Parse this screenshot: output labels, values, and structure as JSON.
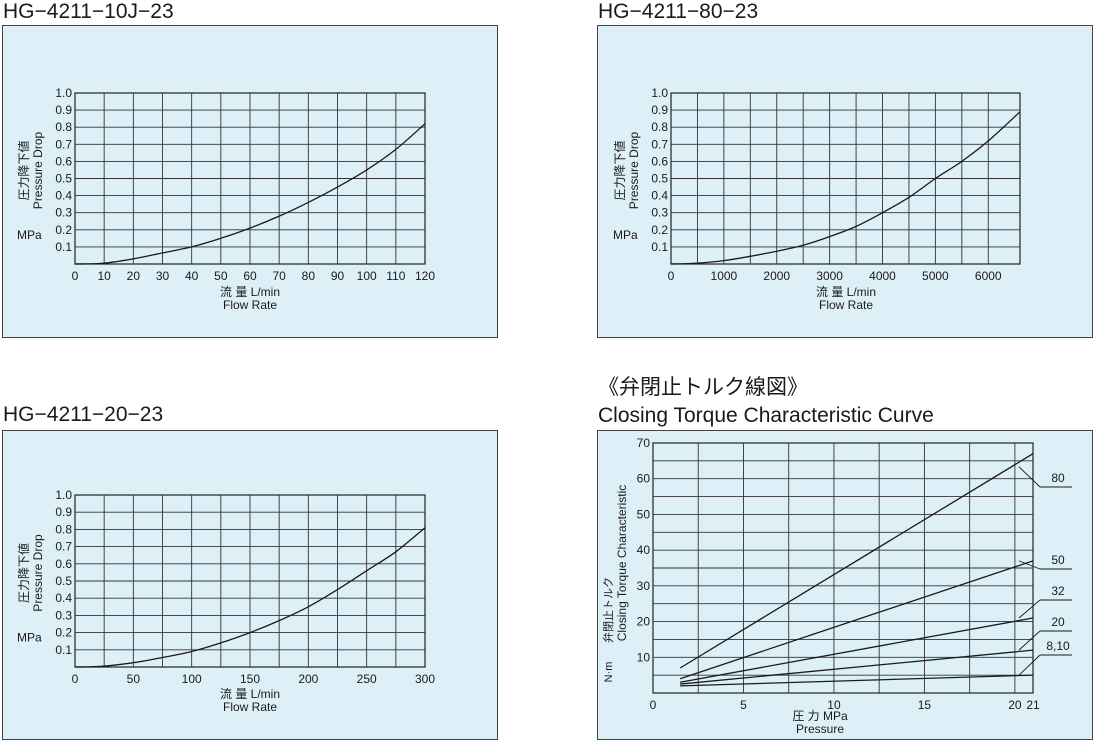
{
  "torque_heading": "《弁閉止トルク線図》",
  "chart_data": [
    {
      "id": "c1",
      "type": "line",
      "title": "HG−4211−10J−23",
      "xlabel_jp": "流 量 L/min",
      "xlabel_en": "Flow Rate",
      "ylabel_jp": "圧力降下値",
      "ylabel_en": "Pressure Drop",
      "yunit": "MPa",
      "xlim": [
        0,
        120
      ],
      "ylim": [
        0,
        1.0
      ],
      "x_ticks": [
        0,
        10,
        20,
        30,
        40,
        50,
        60,
        70,
        80,
        90,
        100,
        110,
        120
      ],
      "x_tick_labels": [
        "0",
        "10",
        "20",
        "30",
        "40",
        "50",
        "60",
        "70",
        "80",
        "90",
        "100",
        "110",
        "120"
      ],
      "y_ticks": [
        0.1,
        0.2,
        0.3,
        0.4,
        0.5,
        0.6,
        0.7,
        0.8,
        0.9,
        1.0
      ],
      "y_tick_labels": [
        "0.1",
        "0.2",
        "0.3",
        "0.4",
        "0.5",
        "0.6",
        "0.7",
        "0.8",
        "0.9",
        "1.0"
      ],
      "grid": true,
      "series": [
        {
          "x": [
            0,
            10,
            20,
            30,
            40,
            50,
            60,
            70,
            80,
            90,
            100,
            110,
            120
          ],
          "y": [
            0,
            0.005,
            0.03,
            0.065,
            0.1,
            0.15,
            0.21,
            0.28,
            0.36,
            0.45,
            0.55,
            0.67,
            0.82
          ]
        }
      ]
    },
    {
      "id": "c2",
      "type": "line",
      "title": "HG−4211−80−23",
      "xlabel_jp": "流 量 L/min",
      "xlabel_en": "Flow Rate",
      "ylabel_jp": "圧力降下値",
      "ylabel_en": "Pressure Drop",
      "yunit": "MPa",
      "xlim": [
        0,
        6600
      ],
      "ylim": [
        0,
        1.0
      ],
      "x_ticks": [
        0,
        1000,
        2000,
        3000,
        4000,
        5000,
        6000
      ],
      "x_tick_labels": [
        "0",
        "1000",
        "2000",
        "3000",
        "4000",
        "5000",
        "6000"
      ],
      "x_grid": [
        500,
        1000,
        1500,
        2000,
        2500,
        3000,
        3500,
        4000,
        4500,
        5000,
        5500,
        6000
      ],
      "y_ticks": [
        0.1,
        0.2,
        0.3,
        0.4,
        0.5,
        0.6,
        0.7,
        0.8,
        0.9,
        1.0
      ],
      "y_tick_labels": [
        "0.1",
        "0.2",
        "0.3",
        "0.4",
        "0.5",
        "0.6",
        "0.7",
        "0.8",
        "0.9",
        "1.0"
      ],
      "grid": true,
      "series": [
        {
          "x": [
            0,
            500,
            1000,
            1500,
            2000,
            2500,
            3000,
            3500,
            4000,
            4500,
            5000,
            5500,
            6000,
            6600
          ],
          "y": [
            0,
            0.005,
            0.02,
            0.045,
            0.075,
            0.11,
            0.16,
            0.22,
            0.3,
            0.39,
            0.5,
            0.6,
            0.72,
            0.89
          ]
        }
      ]
    },
    {
      "id": "c3",
      "type": "line",
      "title": "HG−4211−20−23",
      "xlabel_jp": "流 量 L/min",
      "xlabel_en": "Flow Rate",
      "ylabel_jp": "圧力降下値",
      "ylabel_en": "Pressure Drop",
      "yunit": "MPa",
      "xlim": [
        0,
        300
      ],
      "ylim": [
        0,
        1.0
      ],
      "x_ticks": [
        0,
        50,
        100,
        150,
        200,
        250,
        300
      ],
      "x_tick_labels": [
        "0",
        "50",
        "100",
        "150",
        "200",
        "250",
        "300"
      ],
      "x_grid": [
        25,
        50,
        75,
        100,
        125,
        150,
        175,
        200,
        225,
        250,
        275
      ],
      "y_ticks": [
        0.1,
        0.2,
        0.3,
        0.4,
        0.5,
        0.6,
        0.7,
        0.8,
        0.9,
        1.0
      ],
      "y_tick_labels": [
        "0.1",
        "0.2",
        "0.3",
        "0.4",
        "0.5",
        "0.6",
        "0.7",
        "0.8",
        "0.9",
        "1.0"
      ],
      "grid": true,
      "series": [
        {
          "x": [
            0,
            25,
            50,
            75,
            100,
            125,
            150,
            175,
            200,
            225,
            250,
            275,
            300
          ],
          "y": [
            0,
            0.005,
            0.025,
            0.055,
            0.09,
            0.14,
            0.2,
            0.27,
            0.35,
            0.45,
            0.56,
            0.67,
            0.81
          ]
        }
      ]
    },
    {
      "id": "c4",
      "type": "line",
      "title": "Closing Torque Characteristic Curve",
      "xlabel_jp": "圧 力 MPa",
      "xlabel_en": "Pressure",
      "ylabel_jp": "弁閉止トルク",
      "ylabel_en": "Closing Torque Characteristic",
      "yunit": "N·m",
      "xlim": [
        0,
        21
      ],
      "ylim": [
        0,
        70
      ],
      "x_ticks": [
        0,
        5,
        10,
        15,
        20,
        21
      ],
      "x_tick_labels": [
        "0",
        "5",
        "10",
        "15",
        "20",
        "21"
      ],
      "x_grid": [
        2.5,
        5,
        7.5,
        10,
        12.5,
        15,
        17.5,
        20,
        21
      ],
      "y_ticks": [
        10,
        20,
        30,
        40,
        50,
        60,
        70
      ],
      "y_tick_labels": [
        "10",
        "20",
        "30",
        "40",
        "50",
        "60",
        "70"
      ],
      "y_grid": [
        5,
        10,
        15,
        20,
        25,
        30,
        35,
        40,
        45,
        50,
        55,
        60,
        65,
        70
      ],
      "grid": true,
      "series": [
        {
          "name": "80",
          "x": [
            1.5,
            21
          ],
          "y": [
            7,
            67
          ]
        },
        {
          "name": "50",
          "x": [
            1.5,
            21
          ],
          "y": [
            4,
            37
          ]
        },
        {
          "name": "32",
          "x": [
            1.5,
            21
          ],
          "y": [
            3,
            21
          ]
        },
        {
          "name": "20",
          "x": [
            1.5,
            21
          ],
          "y": [
            2.5,
            12
          ]
        },
        {
          "name": "8,10",
          "x": [
            1.5,
            21
          ],
          "y": [
            2,
            5
          ]
        }
      ]
    }
  ]
}
